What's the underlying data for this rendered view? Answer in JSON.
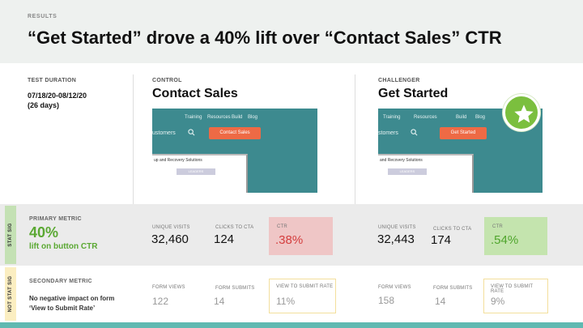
{
  "header": {
    "eyebrow": "RESULTS",
    "title": "“Get Started” drove a 40% lift over “Contact Sales” CTR"
  },
  "test_duration": {
    "label": "TEST DURATION",
    "dates": "07/18/20-08/12/20",
    "days": "(26 days)"
  },
  "control": {
    "label": "CONTROL",
    "name": "Contact Sales",
    "screenshot": {
      "nav": [
        "Training",
        "Resources",
        "Build",
        "Blog"
      ],
      "sub_text": "ustomers",
      "cta": "Contact Sales",
      "panel_text": "up and Recovery Solutions",
      "panel_button": "LEADERS"
    }
  },
  "challenger": {
    "label": "CHALLENGER",
    "name": "Get Started",
    "winner_icon": "star-icon",
    "screenshot": {
      "nav": [
        "Training",
        "Resources",
        "Build",
        "Blog"
      ],
      "sub_text": "stomers",
      "cta": "Get Started",
      "panel_text": "and Recovery Solutions",
      "panel_button": "LEADERS"
    }
  },
  "side_tabs": {
    "stat_sig": "STAT SIG",
    "not_stat_sig": "NOT STAT SIG"
  },
  "primary_metric": {
    "label": "PRIMARY METRIC",
    "value": "40%",
    "description": "lift on button CTR",
    "labels": {
      "unique_visits": "UNIQUE VISITS",
      "clicks": "CLICKS TO CTA",
      "ctr": "CTR"
    },
    "control": {
      "unique_visits": "32,460",
      "clicks": "124",
      "ctr": ".38%"
    },
    "challenger": {
      "unique_visits": "32,443",
      "clicks": "174",
      "ctr": ".54%"
    }
  },
  "secondary_metric": {
    "label": "SECONDARY METRIC",
    "description_line1": "No negative impact on form",
    "description_line2": "‘View to Submit Rate’",
    "labels": {
      "form_views": "FORM VIEWS",
      "form_submits": "FORM SUBMITS",
      "rate": "VIEW TO SUBMIT RATE"
    },
    "control": {
      "form_views": "122",
      "form_submits": "14",
      "rate": "11%"
    },
    "challenger": {
      "form_views": "158",
      "form_submits": "14",
      "rate": "9%"
    }
  },
  "colors": {
    "teal": "#3d8a8f",
    "cta_orange": "#ee6a45",
    "win_green": "#5aa832",
    "lose_red": "#d43d3d",
    "bottom_bar": "#5fb9b1"
  }
}
